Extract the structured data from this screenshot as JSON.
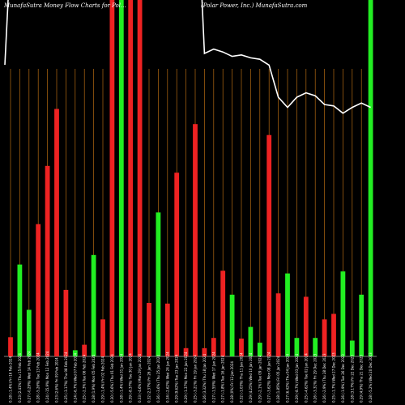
{
  "header": {
    "title_left": "MunafaSutra  Money Flow  Charts for Pol...",
    "title_right": "(Polar Power,  Inc.) MunafaSutra.com"
  },
  "chart_data": {
    "type": "bar",
    "categories": [
      "Fri 16 Feb 2024",
      "Thu 15 Feb 2024",
      "Wed 14 Feb 2024",
      "Tue 13 Feb 2024",
      "Mon 12 Feb 2024",
      "Fri 09 Feb 2024",
      "Thu 08 Feb 2024",
      "Wed 07 Feb 2024",
      "Tue 06 Feb 2024",
      "Mon 05 Feb 2024",
      "Fri 02 Feb 2024",
      "Thu 01 Feb 2024",
      "Wed 31 Jan 2024",
      "Tue 30 Jan 2024",
      "Mon 29 Jan 2024",
      "Fri 26 Jan 2024",
      "Thu 25 Jan 2024",
      "Wed 24 Jan 2024",
      "Tue 23 Jan 2024",
      "Mon 22 Jan 2024",
      "Fri 19 Jan 2024",
      "Thu 18 Jan 2024",
      "Wed 17 Jan 2024",
      "Tue 16 Jan 2024",
      "Fri 12 Jan 2024",
      "Thu 11 Jan 2024",
      "Wed 10 Jan 2024",
      "Tue 09 Jan 2024",
      "Mon 08 Jan 2024",
      "Fri 05 Jan 2024",
      "Thu 04 Jan 2024",
      "Wed 03 Jan 2024",
      "Tue 02 Jan 2024",
      "Fri 29 Dec 2023",
      "Thu 28 Dec 2023",
      "Wed 27 Dec 2023",
      "Tue 26 Dec 2023",
      "Fri 22 Dec 2023",
      "Thu 21 Dec 2023",
      "Wed 20 Dec 2023"
    ],
    "x_labels": [
      "0.18 (-1.4%)",
      "0.23 (2.41%)",
      "0.27 (-0.29%)",
      "0.28 (-5.26%)",
      "0.24 (-15.9%)",
      "0.23 (2.6%)",
      "0.25 (-3.17%)",
      "0.24 (-6.7%)",
      "0.25 (-2.3%)",
      "0.28 (1.9%)",
      "0.29 (-1.4%)",
      "0.30 (-5.6%)",
      "0.38 (-1.4%)",
      "0.39 (-8.37%)",
      "0.33 (-4.6%)",
      "0.32 (2.37%)",
      "0.36 (-3.6%)",
      "0.34 (-2.62%)",
      "0.29 (9.62%)",
      "0.29 (-1.37%)",
      "0.25 (-3.21%)",
      "0.26 (3.32%)",
      "0.27 (-1.55%)",
      "0.27 (-1.8%)",
      "0.28 (0%)",
      "0.32 (-1.03%)",
      "0.29 (4.25%)",
      "0.29 (-2.1%)",
      "0.27 (-3.62%)",
      "0.28 (1.85%)",
      "0.27 (6.42%)",
      "0.29 (-8.7%)",
      "0.25 (-4.62%)",
      "0.26 (-3.31%)",
      "0.26 (-2.9%)",
      "0.25 (-1.7%)",
      "0.26 (-1.9%)",
      "0.28 (3.17%)",
      "0.29 (4.9%)",
      "0.28 (-5.2%)"
    ],
    "series": [
      {
        "values": [
          -28,
          134,
          68,
          193,
          278,
          361,
          97,
          9,
          17,
          148,
          -54,
          -520,
          520,
          -520,
          520,
          -78,
          210,
          -77,
          268,
          12,
          -339,
          12,
          -27,
          125,
          90,
          -26,
          43,
          20,
          -323,
          92,
          121,
          27,
          87,
          27,
          54,
          62,
          124,
          23,
          90,
          520
        ],
        "colors": [
          "red",
          "green",
          "green",
          "red",
          "red",
          "red",
          "red",
          "green",
          "red",
          "green",
          "red",
          "red",
          "green",
          "red",
          "red",
          "red",
          "green",
          "red",
          "red",
          "red",
          "red",
          "red",
          "red",
          "red",
          "green",
          "red",
          "green",
          "green",
          "red",
          "red",
          "green",
          "green",
          "red",
          "green",
          "red",
          "red",
          "green",
          "green",
          "green",
          "green"
        ]
      }
    ],
    "line_series": {
      "values": [
        1.0,
        0.98,
        0.965,
        0.955,
        0.94,
        0.925,
        0.91,
        0.9,
        0.89,
        0.88,
        0.87,
        0.86,
        0.85,
        0.84,
        0.835,
        0.83,
        0.825,
        0.82,
        0.815,
        0.81,
        0.805,
        0.8,
        0.83,
        0.81,
        0.78,
        0.79,
        0.77,
        0.76,
        0.72,
        0.5,
        0.43,
        0.5,
        0.53,
        0.51,
        0.45,
        0.44,
        0.39,
        0.43,
        0.46,
        0.43
      ]
    },
    "colors": {
      "green": "#22ee22",
      "red": "#ee2222",
      "grid": "#b46a12",
      "line": "#ffffff",
      "background": "#000000"
    },
    "grid": true,
    "xlabel": "",
    "ylabel": ""
  }
}
